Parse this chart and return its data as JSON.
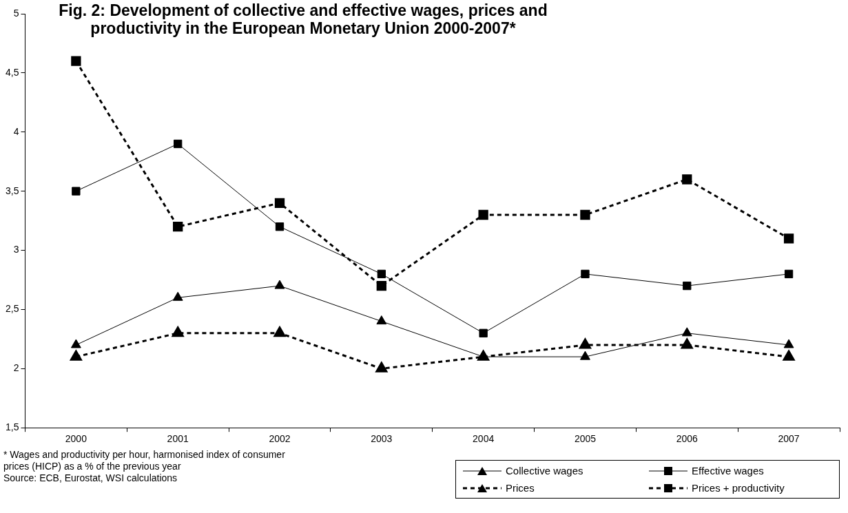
{
  "chart_data": {
    "type": "line",
    "title": "Fig. 2: Development of collective and effective wages, prices and productivity in the European Monetary Union 2000-2007*",
    "categories": [
      "2000",
      "2001",
      "2002",
      "2003",
      "2004",
      "2005",
      "2006",
      "2007"
    ],
    "series": [
      {
        "name": "Collective wages",
        "color": "#000000",
        "marker": "triangle",
        "line_style": "solid",
        "values": [
          2.2,
          2.6,
          2.7,
          2.4,
          2.1,
          2.1,
          2.3,
          2.2
        ]
      },
      {
        "name": "Effective wages",
        "color": "#000000",
        "marker": "square",
        "line_style": "solid",
        "values": [
          3.5,
          3.9,
          3.2,
          2.8,
          2.3,
          2.8,
          2.7,
          2.8
        ]
      },
      {
        "name": "Prices",
        "color": "#000000",
        "marker": "triangle",
        "line_style": "dashed",
        "values": [
          2.1,
          2.3,
          2.3,
          2.0,
          2.1,
          2.2,
          2.2,
          2.1
        ]
      },
      {
        "name": "Prices + productivity",
        "color": "#000000",
        "marker": "square",
        "line_style": "dashed",
        "values": [
          4.6,
          3.2,
          3.4,
          2.7,
          3.3,
          3.3,
          3.6,
          3.1
        ]
      }
    ],
    "ylim": [
      1.5,
      5
    ],
    "yticks": [
      {
        "value": 1.5,
        "label": "1,5"
      },
      2,
      {
        "value": 2.5,
        "label": "2,5"
      },
      3,
      {
        "value": 3.5,
        "label": "3,5"
      },
      4,
      {
        "value": 4.5,
        "label": "4,5"
      },
      5
    ],
    "legend": "bottom right",
    "annotations": [
      "* Wages and productivity per hour, harmonised index of consumer prices (HICP) as a % of the previous year",
      "Source: ECB, Eurostat, WSI calculations"
    ]
  }
}
